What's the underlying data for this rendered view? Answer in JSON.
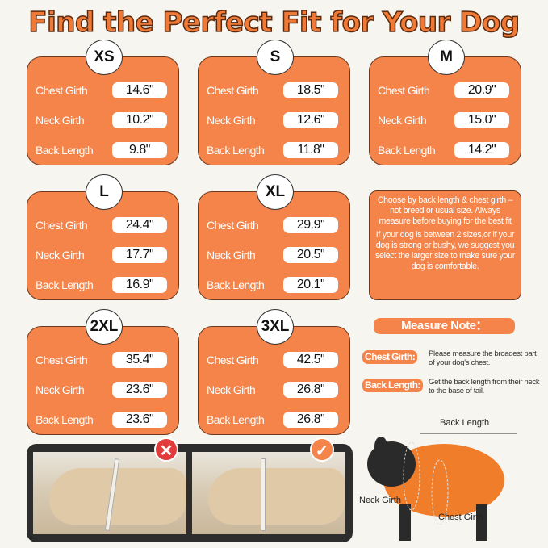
{
  "title": "Find the Perfect Fit for Your Dog",
  "row_labels": {
    "chest": "Chest Girth",
    "neck": "Neck Girth",
    "back": "Back Length"
  },
  "sizes": [
    {
      "size": "XS",
      "chest": "14.6\"",
      "neck": "10.2\"",
      "back": "9.8\""
    },
    {
      "size": "S",
      "chest": "18.5\"",
      "neck": "12.6\"",
      "back": "11.8\""
    },
    {
      "size": "M",
      "chest": "20.9\"",
      "neck": "15.0\"",
      "back": "14.2\""
    },
    {
      "size": "L",
      "chest": "24.4\"",
      "neck": "17.7\"",
      "back": "16.9\""
    },
    {
      "size": "XL",
      "chest": "29.9\"",
      "neck": "20.5\"",
      "back": "20.1\""
    },
    {
      "size": "2XL",
      "chest": "35.4\"",
      "neck": "23.6\"",
      "back": "23.6\""
    },
    {
      "size": "3XL",
      "chest": "42.5\"",
      "neck": "26.8\"",
      "back": "26.8\""
    }
  ],
  "info": {
    "p1": "Choose by back length & chest girth – not breed or usual size. Always measure before buying for the best fit",
    "p2": "If your dog is between 2 sizes,or if your dog is strong or bushy, we suggest you select the larger size to make sure your dog is comfortable."
  },
  "measure_note": {
    "title": "Measure Note：",
    "chest_tag": "Chest Girth:",
    "chest_desc": "Please measure the broadest part of your dog's chest.",
    "back_tag": "Back Length:",
    "back_desc": "Get the back length from their neck to the base of tail."
  },
  "photos": {
    "wrong_icon": "x-icon",
    "right_icon": "check-icon"
  },
  "diagram": {
    "back": "Back Length",
    "neck": "Neck Girth",
    "chest": "Chest Girth"
  },
  "colors": {
    "orange": "#f5844a",
    "background": "#f7f5ef"
  }
}
